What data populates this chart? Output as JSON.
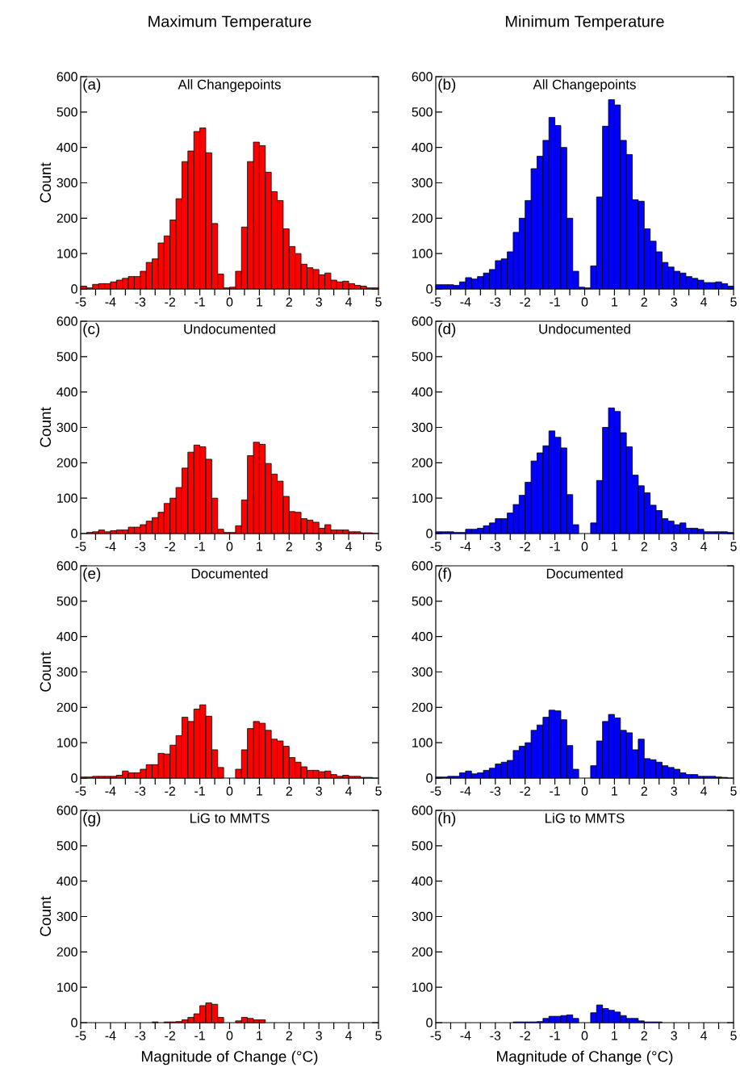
{
  "chart_data": [
    {
      "type": "histogram",
      "title": "Maximum Temperature",
      "subtitle": "All Changepoints",
      "annotations": [
        "(a)"
      ],
      "ylabel": "Count",
      "color": "#ff0000",
      "bins": [
        -5,
        -4.8,
        -4.6,
        -4.4,
        -4.2,
        -4,
        -3.8,
        -3.6,
        -3.4,
        -3.2,
        -3,
        -2.8,
        -2.6,
        -2.4,
        -2.2,
        -2,
        -1.8,
        -1.6,
        -1.4,
        -1.2,
        -1,
        -0.8,
        -0.6,
        -0.4,
        -0.2,
        0,
        0.2,
        0.4,
        0.6,
        0.8,
        1,
        1.2,
        1.4,
        1.6,
        1.8,
        2,
        2.2,
        2.4,
        2.6,
        2.8,
        3,
        3.2,
        3.4,
        3.6,
        3.8,
        4,
        4.2,
        4.4,
        4.6,
        4.8,
        5
      ],
      "values": [
        8,
        3,
        13,
        15,
        15,
        20,
        25,
        30,
        35,
        35,
        50,
        75,
        85,
        130,
        150,
        195,
        255,
        360,
        390,
        445,
        455,
        385,
        185,
        42,
        3,
        5,
        50,
        175,
        360,
        415,
        405,
        330,
        275,
        250,
        170,
        120,
        100,
        70,
        60,
        55,
        40,
        45,
        25,
        20,
        22,
        15,
        10,
        8,
        3,
        3
      ],
      "xlim": [
        -5,
        5
      ],
      "ylim": [
        0,
        600
      ],
      "xticks": [
        -5,
        {
          "value": -4.5,
          "label": null
        },
        -4,
        {
          "value": -3.5,
          "label": null
        },
        -3,
        {
          "value": -2.5,
          "label": null
        },
        -2,
        {
          "value": -1.5,
          "label": null
        },
        -1,
        {
          "value": -0.5,
          "label": null
        },
        0,
        {
          "value": 0.5,
          "label": null
        },
        1,
        {
          "value": 1.5,
          "label": null
        },
        2,
        {
          "value": 2.5,
          "label": null
        },
        3,
        {
          "value": 3.5,
          "label": null
        },
        4,
        {
          "value": 4.5,
          "label": null
        },
        5
      ],
      "yticks": [
        0,
        100,
        200,
        300,
        400,
        500,
        600
      ]
    },
    {
      "type": "histogram",
      "title": "Minimum Temperature",
      "subtitle": "All Changepoints",
      "annotations": [
        "(b)"
      ],
      "color": "#0000ff",
      "bins": [
        -5,
        -4.8,
        -4.6,
        -4.4,
        -4.2,
        -4,
        -3.8,
        -3.6,
        -3.4,
        -3.2,
        -3,
        -2.8,
        -2.6,
        -2.4,
        -2.2,
        -2,
        -1.8,
        -1.6,
        -1.4,
        -1.2,
        -1,
        -0.8,
        -0.6,
        -0.4,
        -0.2,
        0,
        0.2,
        0.4,
        0.6,
        0.8,
        1,
        1.2,
        1.4,
        1.6,
        1.8,
        2,
        2.2,
        2.4,
        2.6,
        2.8,
        3,
        3.2,
        3.4,
        3.6,
        3.8,
        4,
        4.2,
        4.4,
        4.6,
        4.8,
        5
      ],
      "values": [
        12,
        12,
        12,
        10,
        20,
        32,
        28,
        35,
        45,
        55,
        80,
        85,
        105,
        160,
        200,
        250,
        340,
        375,
        420,
        485,
        462,
        400,
        200,
        50,
        5,
        3,
        65,
        260,
        460,
        535,
        520,
        420,
        380,
        252,
        248,
        170,
        135,
        105,
        75,
        62,
        50,
        45,
        35,
        30,
        25,
        18,
        18,
        20,
        15,
        8
      ],
      "xlim": [
        -5,
        5
      ],
      "ylim": [
        0,
        600
      ],
      "xticks": [
        -5,
        {
          "value": -4.5,
          "label": null
        },
        -4,
        {
          "value": -3.5,
          "label": null
        },
        -3,
        {
          "value": -2.5,
          "label": null
        },
        -2,
        {
          "value": -1.5,
          "label": null
        },
        -1,
        {
          "value": -0.5,
          "label": null
        },
        0,
        {
          "value": 0.5,
          "label": null
        },
        1,
        {
          "value": 1.5,
          "label": null
        },
        2,
        {
          "value": 2.5,
          "label": null
        },
        3,
        {
          "value": 3.5,
          "label": null
        },
        4,
        {
          "value": 4.5,
          "label": null
        },
        5
      ],
      "yticks": [
        0,
        100,
        200,
        300,
        400,
        500,
        600
      ]
    },
    {
      "type": "histogram",
      "subtitle": "Undocumented",
      "annotations": [
        "(c)"
      ],
      "ylabel": "Count",
      "color": "#ff0000",
      "bins": [
        -5,
        -4.8,
        -4.6,
        -4.4,
        -4.2,
        -4,
        -3.8,
        -3.6,
        -3.4,
        -3.2,
        -3,
        -2.8,
        -2.6,
        -2.4,
        -2.2,
        -2,
        -1.8,
        -1.6,
        -1.4,
        -1.2,
        -1,
        -0.8,
        -0.6,
        -0.4,
        -0.2,
        0,
        0.2,
        0.4,
        0.6,
        0.8,
        1,
        1.2,
        1.4,
        1.6,
        1.8,
        2,
        2.2,
        2.4,
        2.6,
        2.8,
        3,
        3.2,
        3.4,
        3.6,
        3.8,
        4,
        4.2,
        4.4,
        4.6,
        4.8,
        5
      ],
      "values": [
        0,
        3,
        5,
        10,
        5,
        8,
        10,
        10,
        18,
        18,
        25,
        35,
        45,
        60,
        85,
        100,
        130,
        185,
        230,
        250,
        245,
        210,
        100,
        12,
        3,
        3,
        22,
        95,
        220,
        258,
        252,
        198,
        168,
        148,
        105,
        62,
        60,
        42,
        38,
        32,
        15,
        25,
        10,
        10,
        10,
        5,
        5,
        2,
        2,
        null
      ],
      "xlim": [
        -5,
        5
      ],
      "ylim": [
        0,
        600
      ],
      "xticks": [
        -5,
        {
          "value": -4.5,
          "label": null
        },
        -4,
        {
          "value": -3.5,
          "label": null
        },
        -3,
        {
          "value": -2.5,
          "label": null
        },
        -2,
        {
          "value": -1.5,
          "label": null
        },
        -1,
        {
          "value": -0.5,
          "label": null
        },
        0,
        {
          "value": 0.5,
          "label": null
        },
        1,
        {
          "value": 1.5,
          "label": null
        },
        2,
        {
          "value": 2.5,
          "label": null
        },
        3,
        {
          "value": 3.5,
          "label": null
        },
        4,
        {
          "value": 4.5,
          "label": null
        },
        5
      ],
      "yticks": [
        0,
        100,
        200,
        300,
        400,
        500,
        600
      ]
    },
    {
      "type": "histogram",
      "subtitle": "Undocumented",
      "annotations": [
        "(d)"
      ],
      "color": "#0000ff",
      "bins": [
        -5,
        -4.8,
        -4.6,
        -4.4,
        -4.2,
        -4,
        -3.8,
        -3.6,
        -3.4,
        -3.2,
        -3,
        -2.8,
        -2.6,
        -2.4,
        -2.2,
        -2,
        -1.8,
        -1.6,
        -1.4,
        -1.2,
        -1,
        -0.8,
        -0.6,
        -0.4,
        -0.2,
        0,
        0.2,
        0.4,
        0.6,
        0.8,
        1,
        1.2,
        1.4,
        1.6,
        1.8,
        2,
        2.2,
        2.4,
        2.6,
        2.8,
        3,
        3.2,
        3.4,
        3.6,
        3.8,
        4,
        4.2,
        4.4,
        4.6,
        4.8,
        5
      ],
      "values": [
        5,
        5,
        5,
        3,
        3,
        12,
        12,
        15,
        22,
        30,
        42,
        42,
        58,
        82,
        108,
        145,
        205,
        228,
        248,
        290,
        272,
        242,
        110,
        25,
        0,
        0,
        30,
        150,
        300,
        355,
        345,
        285,
        245,
        165,
        135,
        115,
        80,
        65,
        42,
        35,
        25,
        30,
        15,
        15,
        12,
        5,
        5,
        5,
        5,
        3
      ],
      "xlim": [
        -5,
        5
      ],
      "ylim": [
        0,
        600
      ],
      "xticks": [
        -5,
        {
          "value": -4.5,
          "label": null
        },
        -4,
        {
          "value": -3.5,
          "label": null
        },
        -3,
        {
          "value": -2.5,
          "label": null
        },
        -2,
        {
          "value": -1.5,
          "label": null
        },
        -1,
        {
          "value": -0.5,
          "label": null
        },
        0,
        {
          "value": 0.5,
          "label": null
        },
        1,
        {
          "value": 1.5,
          "label": null
        },
        2,
        {
          "value": 2.5,
          "label": null
        },
        3,
        {
          "value": 3.5,
          "label": null
        },
        4,
        {
          "value": 4.5,
          "label": null
        },
        5
      ],
      "yticks": [
        0,
        100,
        200,
        300,
        400,
        500,
        600
      ]
    },
    {
      "type": "histogram",
      "subtitle": "Documented",
      "annotations": [
        "(e)"
      ],
      "ylabel": "Count",
      "color": "#ff0000",
      "bins": [
        -5,
        -4.8,
        -4.6,
        -4.4,
        -4.2,
        -4,
        -3.8,
        -3.6,
        -3.4,
        -3.2,
        -3,
        -2.8,
        -2.6,
        -2.4,
        -2.2,
        -2,
        -1.8,
        -1.6,
        -1.4,
        -1.2,
        -1,
        -0.8,
        -0.6,
        -0.4,
        -0.2,
        0,
        0.2,
        0.4,
        0.6,
        0.8,
        1,
        1.2,
        1.4,
        1.6,
        1.8,
        2,
        2.2,
        2.4,
        2.6,
        2.8,
        3,
        3.2,
        3.4,
        3.6,
        3.8,
        4,
        4.2,
        4.4,
        4.6,
        4.8,
        5
      ],
      "values": [
        3,
        3,
        5,
        5,
        5,
        5,
        8,
        20,
        15,
        15,
        25,
        38,
        38,
        70,
        68,
        93,
        120,
        172,
        160,
        195,
        207,
        175,
        80,
        30,
        0,
        0,
        25,
        80,
        140,
        160,
        155,
        135,
        110,
        105,
        90,
        58,
        45,
        32,
        22,
        22,
        18,
        20,
        10,
        5,
        8,
        5,
        5,
        2,
        2,
        null
      ],
      "xlim": [
        -5,
        5
      ],
      "ylim": [
        0,
        600
      ],
      "xticks": [
        -5,
        {
          "value": -4.5,
          "label": null
        },
        -4,
        {
          "value": -3.5,
          "label": null
        },
        -3,
        {
          "value": -2.5,
          "label": null
        },
        -2,
        {
          "value": -1.5,
          "label": null
        },
        -1,
        {
          "value": -0.5,
          "label": null
        },
        0,
        {
          "value": 0.5,
          "label": null
        },
        1,
        {
          "value": 1.5,
          "label": null
        },
        2,
        {
          "value": 2.5,
          "label": null
        },
        3,
        {
          "value": 3.5,
          "label": null
        },
        4,
        {
          "value": 4.5,
          "label": null
        },
        5
      ],
      "yticks": [
        0,
        100,
        200,
        300,
        400,
        500,
        600
      ]
    },
    {
      "type": "histogram",
      "subtitle": "Documented",
      "annotations": [
        "(f)"
      ],
      "color": "#0000ff",
      "bins": [
        -5,
        -4.8,
        -4.6,
        -4.4,
        -4.2,
        -4,
        -3.8,
        -3.6,
        -3.4,
        -3.2,
        -3,
        -2.8,
        -2.6,
        -2.4,
        -2.2,
        -2,
        -1.8,
        -1.6,
        -1.4,
        -1.2,
        -1,
        -0.8,
        -0.6,
        -0.4,
        -0.2,
        0,
        0.2,
        0.4,
        0.6,
        0.8,
        1,
        1.2,
        1.4,
        1.6,
        1.8,
        2,
        2.2,
        2.4,
        2.6,
        2.8,
        3,
        3.2,
        3.4,
        3.6,
        3.8,
        4,
        4.2,
        4.4,
        4.6,
        4.8,
        5
      ],
      "values": [
        3,
        3,
        5,
        5,
        15,
        20,
        12,
        15,
        22,
        28,
        40,
        45,
        50,
        78,
        90,
        100,
        135,
        150,
        172,
        192,
        190,
        165,
        92,
        25,
        0,
        0,
        35,
        105,
        160,
        180,
        170,
        135,
        128,
        80,
        110,
        55,
        52,
        45,
        35,
        30,
        25,
        15,
        10,
        10,
        5,
        5,
        5,
        3,
        2,
        0
      ],
      "xlim": [
        -5,
        5
      ],
      "ylim": [
        0,
        600
      ],
      "xticks": [
        -5,
        {
          "value": -4.5,
          "label": null
        },
        -4,
        {
          "value": -3.5,
          "label": null
        },
        -3,
        {
          "value": -2.5,
          "label": null
        },
        -2,
        {
          "value": -1.5,
          "label": null
        },
        -1,
        {
          "value": -0.5,
          "label": null
        },
        0,
        {
          "value": 0.5,
          "label": null
        },
        1,
        {
          "value": 1.5,
          "label": null
        },
        2,
        {
          "value": 2.5,
          "label": null
        },
        3,
        {
          "value": 3.5,
          "label": null
        },
        4,
        {
          "value": 4.5,
          "label": null
        },
        5
      ],
      "yticks": [
        0,
        100,
        200,
        300,
        400,
        500,
        600
      ]
    },
    {
      "type": "histogram",
      "subtitle": "LiG to MMTS",
      "annotations": [
        "(g)"
      ],
      "ylabel": "Count",
      "xlabel": "Magnitude of Change (°C)",
      "color": "#ff0000",
      "bins": [
        -5,
        -4.8,
        -4.6,
        -4.4,
        -4.2,
        -4,
        -3.8,
        -3.6,
        -3.4,
        -3.2,
        -3,
        -2.8,
        -2.6,
        -2.4,
        -2.2,
        -2,
        -1.8,
        -1.6,
        -1.4,
        -1.2,
        -1,
        -0.8,
        -0.6,
        -0.4,
        -0.2,
        0,
        0.2,
        0.4,
        0.6,
        0.8,
        1,
        1.2,
        1.4,
        1.6,
        1.8,
        2,
        2.2,
        2.4,
        2.6,
        2.8,
        3,
        3.2,
        3.4,
        3.6,
        3.8,
        4,
        4.2,
        4.4,
        4.6,
        4.8,
        5
      ],
      "values": [
        0,
        0,
        0,
        0,
        0,
        0,
        0,
        0,
        0,
        0,
        0,
        0,
        2,
        0,
        2,
        2,
        3,
        8,
        15,
        25,
        48,
        56,
        52,
        15,
        0,
        0,
        5,
        15,
        12,
        8,
        8,
        0,
        0,
        0,
        0,
        0,
        0,
        0,
        0,
        0,
        0,
        0,
        0,
        0,
        0,
        0,
        0,
        0,
        0,
        0
      ],
      "xlim": [
        -5,
        5
      ],
      "ylim": [
        0,
        600
      ],
      "xticks": [
        -5,
        {
          "value": -4.5,
          "label": null
        },
        -4,
        {
          "value": -3.5,
          "label": null
        },
        -3,
        {
          "value": -2.5,
          "label": null
        },
        -2,
        {
          "value": -1.5,
          "label": null
        },
        -1,
        {
          "value": -0.5,
          "label": null
        },
        0,
        {
          "value": 0.5,
          "label": null
        },
        1,
        {
          "value": 1.5,
          "label": null
        },
        2,
        {
          "value": 2.5,
          "label": null
        },
        3,
        {
          "value": 3.5,
          "label": null
        },
        4,
        {
          "value": 4.5,
          "label": null
        },
        5
      ],
      "yticks": [
        0,
        100,
        200,
        300,
        400,
        500,
        600
      ]
    },
    {
      "type": "histogram",
      "subtitle": "LiG to MMTS",
      "annotations": [
        "(h)"
      ],
      "xlabel": "Magnitude of Change (°C)",
      "color": "#0000ff",
      "bins": [
        -5,
        -4.8,
        -4.6,
        -4.4,
        -4.2,
        -4,
        -3.8,
        -3.6,
        -3.4,
        -3.2,
        -3,
        -2.8,
        -2.6,
        -2.4,
        -2.2,
        -2,
        -1.8,
        -1.6,
        -1.4,
        -1.2,
        -1,
        -0.8,
        -0.6,
        -0.4,
        -0.2,
        0,
        0.2,
        0.4,
        0.6,
        0.8,
        1,
        1.2,
        1.4,
        1.6,
        1.8,
        2,
        2.2,
        2.4,
        2.6,
        2.8,
        3,
        3.2,
        3.4,
        3.6,
        3.8,
        4,
        4.2,
        4.4,
        4.6,
        4.8,
        5
      ],
      "values": [
        0,
        0,
        0,
        0,
        0,
        0,
        0,
        0,
        0,
        0,
        0,
        0,
        0,
        2,
        2,
        2,
        2,
        3,
        12,
        18,
        18,
        20,
        22,
        12,
        0,
        0,
        28,
        50,
        40,
        35,
        30,
        20,
        12,
        12,
        5,
        2,
        2,
        2,
        0,
        0,
        0,
        0,
        0,
        0,
        0,
        0,
        0,
        0,
        0,
        0
      ],
      "xlim": [
        -5,
        5
      ],
      "ylim": [
        0,
        600
      ],
      "xticks": [
        -5,
        {
          "value": -4.5,
          "label": null
        },
        -4,
        {
          "value": -3.5,
          "label": null
        },
        -3,
        {
          "value": -2.5,
          "label": null
        },
        -2,
        {
          "value": -1.5,
          "label": null
        },
        -1,
        {
          "value": -0.5,
          "label": null
        },
        0,
        {
          "value": 0.5,
          "label": null
        },
        1,
        {
          "value": 1.5,
          "label": null
        },
        2,
        {
          "value": 2.5,
          "label": null
        },
        3,
        {
          "value": 3.5,
          "label": null
        },
        4,
        {
          "value": 4.5,
          "label": null
        },
        5
      ],
      "yticks": [
        0,
        100,
        200,
        300,
        400,
        500,
        600
      ]
    }
  ]
}
